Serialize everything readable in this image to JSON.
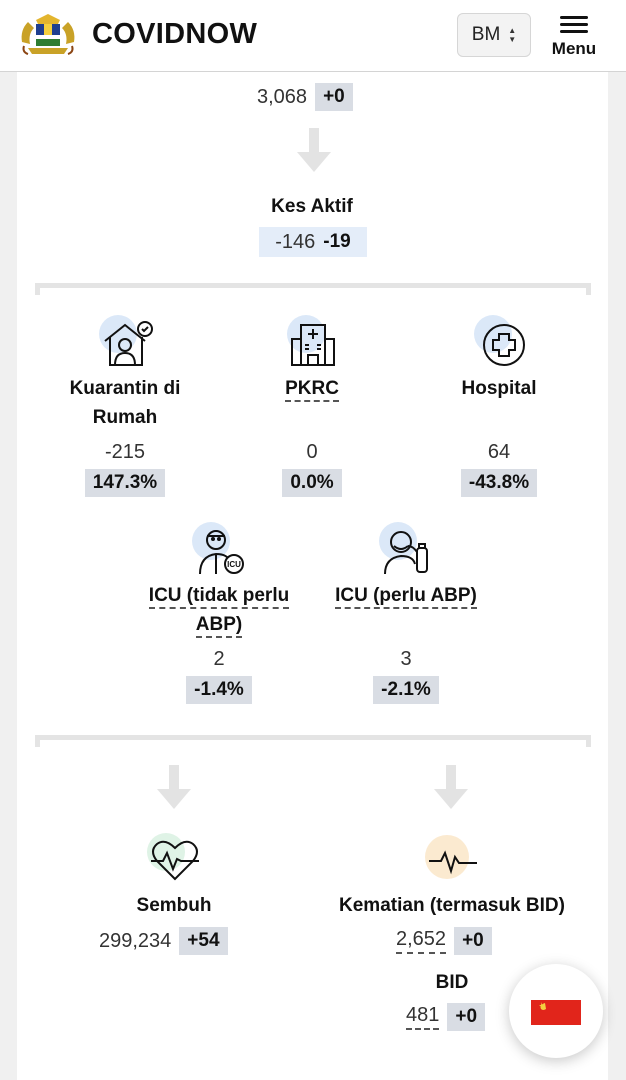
{
  "header": {
    "brand": "COVIDNOW",
    "language": "BM",
    "menu_label": "Menu"
  },
  "top": {
    "value": "3,068",
    "delta": "+0"
  },
  "active": {
    "title": "Kes Aktif",
    "value": "-146",
    "delta": "-19"
  },
  "categories": [
    {
      "title_line1": "Kuarantin di",
      "title_line2": "Rumah",
      "value": "-215",
      "pct": "147.3%"
    },
    {
      "title_line1": "PKRC",
      "title_line2": "",
      "value": "0",
      "pct": "0.0%"
    },
    {
      "title_line1": "Hospital",
      "title_line2": "",
      "value": "64",
      "pct": "-43.8%"
    }
  ],
  "icu": [
    {
      "title_line1": "ICU (tidak perlu",
      "title_line2": "ABP)",
      "value": "2",
      "pct": "-1.4%"
    },
    {
      "title_line1": "ICU (perlu ABP)",
      "title_line2": "",
      "value": "3",
      "pct": "-2.1%"
    }
  ],
  "recovered": {
    "title": "Sembuh",
    "value": "299,234",
    "delta": "+54"
  },
  "deaths": {
    "title": "Kematian (termasuk BID)",
    "value": "2,652",
    "delta": "+0"
  },
  "bid": {
    "title": "BID",
    "value": "481",
    "delta": "+0"
  },
  "colors": {
    "pill": "#d9dde4",
    "blue_circle": "#dbe8f8",
    "green_circle": "#dff3e6",
    "orange_circle": "#fbead0",
    "arrow": "#e3e3e3"
  }
}
